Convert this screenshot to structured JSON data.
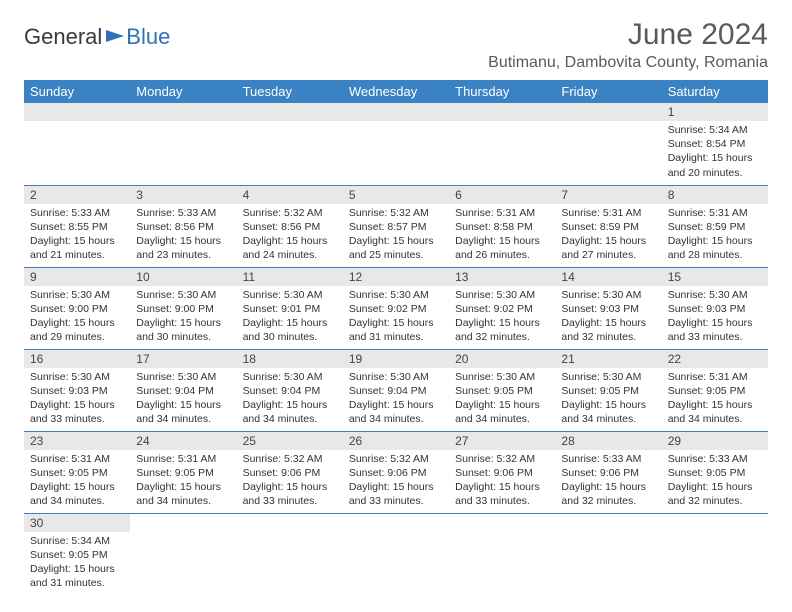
{
  "header": {
    "logo_part1": "General",
    "logo_part2": "Blue",
    "month_title": "June 2024",
    "location": "Butimanu, Dambovita County, Romania"
  },
  "colors": {
    "header_bg": "#3b82c4",
    "header_fg": "#ffffff",
    "daynum_bg": "#e8e8e8",
    "border": "#3b82c4",
    "text": "#333333",
    "title": "#5a5a5a"
  },
  "day_names": [
    "Sunday",
    "Monday",
    "Tuesday",
    "Wednesday",
    "Thursday",
    "Friday",
    "Saturday"
  ],
  "weeks": [
    [
      null,
      null,
      null,
      null,
      null,
      null,
      {
        "n": "1",
        "sunrise": "5:34 AM",
        "sunset": "8:54 PM",
        "daylight": "15 hours and 20 minutes."
      }
    ],
    [
      {
        "n": "2",
        "sunrise": "5:33 AM",
        "sunset": "8:55 PM",
        "daylight": "15 hours and 21 minutes."
      },
      {
        "n": "3",
        "sunrise": "5:33 AM",
        "sunset": "8:56 PM",
        "daylight": "15 hours and 23 minutes."
      },
      {
        "n": "4",
        "sunrise": "5:32 AM",
        "sunset": "8:56 PM",
        "daylight": "15 hours and 24 minutes."
      },
      {
        "n": "5",
        "sunrise": "5:32 AM",
        "sunset": "8:57 PM",
        "daylight": "15 hours and 25 minutes."
      },
      {
        "n": "6",
        "sunrise": "5:31 AM",
        "sunset": "8:58 PM",
        "daylight": "15 hours and 26 minutes."
      },
      {
        "n": "7",
        "sunrise": "5:31 AM",
        "sunset": "8:59 PM",
        "daylight": "15 hours and 27 minutes."
      },
      {
        "n": "8",
        "sunrise": "5:31 AM",
        "sunset": "8:59 PM",
        "daylight": "15 hours and 28 minutes."
      }
    ],
    [
      {
        "n": "9",
        "sunrise": "5:30 AM",
        "sunset": "9:00 PM",
        "daylight": "15 hours and 29 minutes."
      },
      {
        "n": "10",
        "sunrise": "5:30 AM",
        "sunset": "9:00 PM",
        "daylight": "15 hours and 30 minutes."
      },
      {
        "n": "11",
        "sunrise": "5:30 AM",
        "sunset": "9:01 PM",
        "daylight": "15 hours and 30 minutes."
      },
      {
        "n": "12",
        "sunrise": "5:30 AM",
        "sunset": "9:02 PM",
        "daylight": "15 hours and 31 minutes."
      },
      {
        "n": "13",
        "sunrise": "5:30 AM",
        "sunset": "9:02 PM",
        "daylight": "15 hours and 32 minutes."
      },
      {
        "n": "14",
        "sunrise": "5:30 AM",
        "sunset": "9:03 PM",
        "daylight": "15 hours and 32 minutes."
      },
      {
        "n": "15",
        "sunrise": "5:30 AM",
        "sunset": "9:03 PM",
        "daylight": "15 hours and 33 minutes."
      }
    ],
    [
      {
        "n": "16",
        "sunrise": "5:30 AM",
        "sunset": "9:03 PM",
        "daylight": "15 hours and 33 minutes."
      },
      {
        "n": "17",
        "sunrise": "5:30 AM",
        "sunset": "9:04 PM",
        "daylight": "15 hours and 34 minutes."
      },
      {
        "n": "18",
        "sunrise": "5:30 AM",
        "sunset": "9:04 PM",
        "daylight": "15 hours and 34 minutes."
      },
      {
        "n": "19",
        "sunrise": "5:30 AM",
        "sunset": "9:04 PM",
        "daylight": "15 hours and 34 minutes."
      },
      {
        "n": "20",
        "sunrise": "5:30 AM",
        "sunset": "9:05 PM",
        "daylight": "15 hours and 34 minutes."
      },
      {
        "n": "21",
        "sunrise": "5:30 AM",
        "sunset": "9:05 PM",
        "daylight": "15 hours and 34 minutes."
      },
      {
        "n": "22",
        "sunrise": "5:31 AM",
        "sunset": "9:05 PM",
        "daylight": "15 hours and 34 minutes."
      }
    ],
    [
      {
        "n": "23",
        "sunrise": "5:31 AM",
        "sunset": "9:05 PM",
        "daylight": "15 hours and 34 minutes."
      },
      {
        "n": "24",
        "sunrise": "5:31 AM",
        "sunset": "9:05 PM",
        "daylight": "15 hours and 34 minutes."
      },
      {
        "n": "25",
        "sunrise": "5:32 AM",
        "sunset": "9:06 PM",
        "daylight": "15 hours and 33 minutes."
      },
      {
        "n": "26",
        "sunrise": "5:32 AM",
        "sunset": "9:06 PM",
        "daylight": "15 hours and 33 minutes."
      },
      {
        "n": "27",
        "sunrise": "5:32 AM",
        "sunset": "9:06 PM",
        "daylight": "15 hours and 33 minutes."
      },
      {
        "n": "28",
        "sunrise": "5:33 AM",
        "sunset": "9:06 PM",
        "daylight": "15 hours and 32 minutes."
      },
      {
        "n": "29",
        "sunrise": "5:33 AM",
        "sunset": "9:05 PM",
        "daylight": "15 hours and 32 minutes."
      }
    ],
    [
      {
        "n": "30",
        "sunrise": "5:34 AM",
        "sunset": "9:05 PM",
        "daylight": "15 hours and 31 minutes."
      },
      null,
      null,
      null,
      null,
      null,
      null
    ]
  ],
  "labels": {
    "sunrise": "Sunrise:",
    "sunset": "Sunset:",
    "daylight": "Daylight:"
  }
}
